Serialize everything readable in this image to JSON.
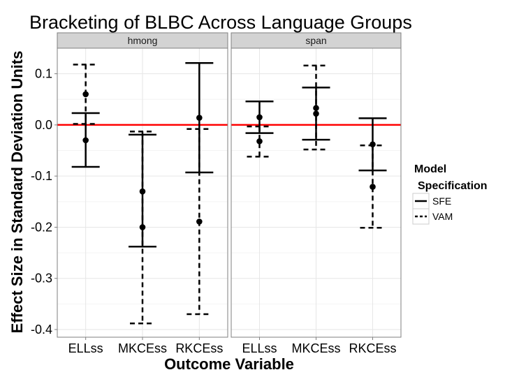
{
  "chart_data": {
    "type": "errorbar",
    "title": "Bracketing of BLBC Across Language Groups",
    "xlabel": "Outcome Variable",
    "ylabel": "Effect Size in Standard Deviation Units",
    "ylim": [
      -0.415,
      0.15
    ],
    "yticks": [
      0.1,
      0.0,
      -0.1,
      -0.2,
      -0.3,
      -0.4
    ],
    "ytick_labels": [
      "0.1",
      "0.0",
      "-0.1",
      "-0.2",
      "-0.3",
      "-0.4"
    ],
    "categories": [
      "ELLss",
      "MKCEss",
      "RKCEss"
    ],
    "reference_line": {
      "y": 0,
      "color": "#ff0000"
    },
    "grid": true,
    "legend": {
      "title_line1": "Model",
      "title_line2": "Specification",
      "placement": "right",
      "entries": [
        {
          "label": "SFE",
          "style": "solid"
        },
        {
          "label": "VAM",
          "style": "dashed"
        }
      ]
    },
    "panels": [
      {
        "label": "hmong",
        "series": [
          {
            "name": "SFE",
            "style": "solid",
            "points": [
              {
                "category": "ELLss",
                "estimate": -0.03,
                "lower": -0.082,
                "upper": 0.023
              },
              {
                "category": "MKCEss",
                "estimate": -0.13,
                "lower": -0.238,
                "upper": -0.019
              },
              {
                "category": "RKCEss",
                "estimate": 0.014,
                "lower": -0.093,
                "upper": 0.121
              }
            ]
          },
          {
            "name": "VAM",
            "style": "dashed",
            "points": [
              {
                "category": "ELLss",
                "estimate": 0.06,
                "lower": 0.002,
                "upper": 0.118
              },
              {
                "category": "MKCEss",
                "estimate": -0.2,
                "lower": -0.388,
                "upper": -0.013
              },
              {
                "category": "RKCEss",
                "estimate": -0.189,
                "lower": -0.37,
                "upper": -0.008
              }
            ]
          }
        ]
      },
      {
        "label": "span",
        "series": [
          {
            "name": "SFE",
            "style": "solid",
            "points": [
              {
                "category": "ELLss",
                "estimate": 0.015,
                "lower": -0.016,
                "upper": 0.046
              },
              {
                "category": "MKCEss",
                "estimate": 0.022,
                "lower": -0.029,
                "upper": 0.073
              },
              {
                "category": "RKCEss",
                "estimate": -0.038,
                "lower": -0.089,
                "upper": 0.013
              }
            ]
          },
          {
            "name": "VAM",
            "style": "dashed",
            "points": [
              {
                "category": "ELLss",
                "estimate": -0.032,
                "lower": -0.062,
                "upper": -0.003
              },
              {
                "category": "MKCEss",
                "estimate": 0.033,
                "lower": -0.048,
                "upper": 0.116
              },
              {
                "category": "RKCEss",
                "estimate": -0.121,
                "lower": -0.201,
                "upper": -0.04
              }
            ]
          }
        ]
      }
    ]
  }
}
